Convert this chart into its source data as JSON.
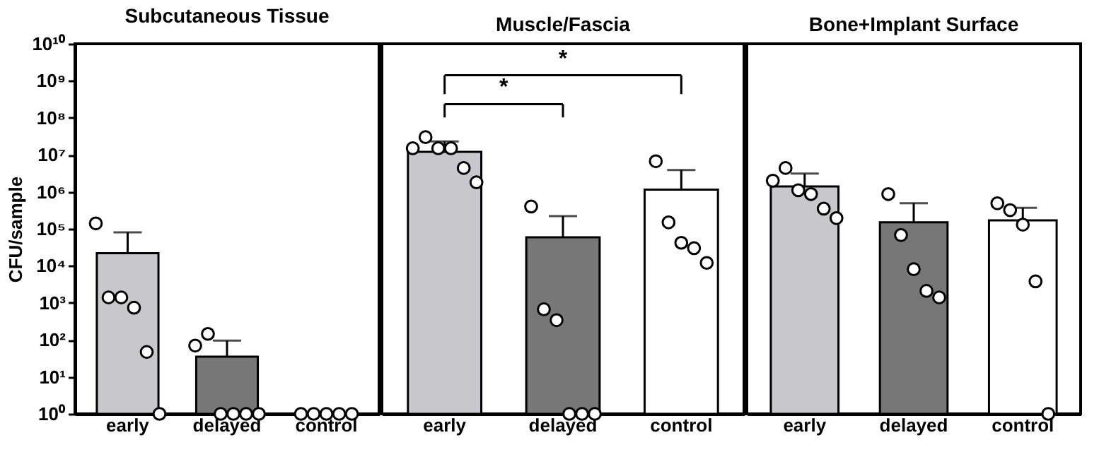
{
  "chart_data": [
    {
      "type": "bar",
      "title": "Subcutaneous Tissue",
      "ylabel": "CFU/sample",
      "categories": [
        "early",
        "delayed",
        "control"
      ],
      "log": true,
      "ylim": [
        1,
        10000000000
      ],
      "yticks": [
        {
          "value": 1,
          "label": "10⁰"
        },
        {
          "value": 10,
          "label": "10¹"
        },
        {
          "value": 100,
          "label": "10²"
        },
        {
          "value": 1000,
          "label": "10³"
        },
        {
          "value": 10000,
          "label": "10⁴"
        },
        {
          "value": 100000,
          "label": "10⁵"
        },
        {
          "value": 1000000,
          "label": "10⁶"
        },
        {
          "value": 10000000,
          "label": "10⁷"
        },
        {
          "value": 100000000,
          "label": "10⁸"
        },
        {
          "value": 1000000000,
          "label": "10⁹"
        },
        {
          "value": 10000000000,
          "label": "10¹⁰"
        }
      ],
      "series": [
        {
          "type": "bar",
          "values": [
            22000,
            35,
            1
          ],
          "colors": [
            "#c8c8cc",
            "#777777",
            "#ffffff"
          ],
          "errors": [
            [
              22000,
              80000
            ],
            [
              35,
              95
            ],
            null
          ]
        },
        {
          "type": "scatter",
          "marker": "circle",
          "color": "#ffffff",
          "x": [
            "early",
            "early",
            "early",
            "early",
            "early",
            "early",
            "delayed",
            "delayed",
            "delayed",
            "delayed",
            "delayed",
            "delayed",
            "control",
            "control",
            "control",
            "control",
            "control"
          ],
          "values": [
            140000,
            1400,
            1400,
            740,
            47,
            1,
            70,
            145,
            1,
            1,
            1,
            1,
            1,
            1,
            1,
            1,
            1
          ]
        }
      ]
    },
    {
      "type": "bar",
      "title": "Muscle/Fascia",
      "categories": [
        "early",
        "delayed",
        "control"
      ],
      "log": true,
      "ylim": [
        1,
        10000000000
      ],
      "tick_labels": "x",
      "annotations": [
        "*",
        "*"
      ],
      "series": [
        {
          "type": "bar",
          "values": [
            12000000,
            59000,
            1150000
          ],
          "colors": [
            "#c8c8cc",
            "#777777",
            "#ffffff"
          ],
          "errors": [
            [
              12000000,
              23000000
            ],
            [
              59000,
              220000
            ],
            [
              1150000,
              3900000
            ]
          ]
        },
        {
          "type": "scatter",
          "marker": "circle",
          "color": "#ffffff",
          "x": [
            "early",
            "early",
            "early",
            "early",
            "early",
            "early",
            "delayed",
            "delayed",
            "delayed",
            "delayed",
            "delayed",
            "delayed",
            "control",
            "control",
            "control",
            "control",
            "control"
          ],
          "values": [
            15000000,
            30000000,
            15000000,
            15000000,
            4400000,
            1800000,
            400000,
            670,
            340,
            1,
            1,
            1,
            6700000,
            150000,
            42000,
            30000,
            12000
          ]
        }
      ]
    },
    {
      "type": "bar",
      "title": "Bone+Implant Surface",
      "categories": [
        "early",
        "delayed",
        "control"
      ],
      "log": true,
      "ylim": [
        1,
        10000000000
      ],
      "tick_labels": "x",
      "series": [
        {
          "type": "bar",
          "values": [
            1400000,
            150000,
            170000
          ],
          "colors": [
            "#c8c8cc",
            "#777777",
            "#ffffff"
          ],
          "errors": [
            [
              1400000,
              3100000
            ],
            [
              150000,
              490000
            ],
            [
              170000,
              370000
            ]
          ]
        },
        {
          "type": "scatter",
          "marker": "circle",
          "color": "#ffffff",
          "x": [
            "early",
            "early",
            "early",
            "early",
            "early",
            "early",
            "delayed",
            "delayed",
            "delayed",
            "delayed",
            "delayed",
            "control",
            "control",
            "control",
            "control",
            "control"
          ],
          "values": [
            2000000,
            4400000,
            1100000,
            870000,
            350000,
            195000,
            870000,
            68000,
            8100,
            2100,
            1400,
            490000,
            320000,
            130000,
            3800,
            1
          ]
        }
      ]
    }
  ]
}
